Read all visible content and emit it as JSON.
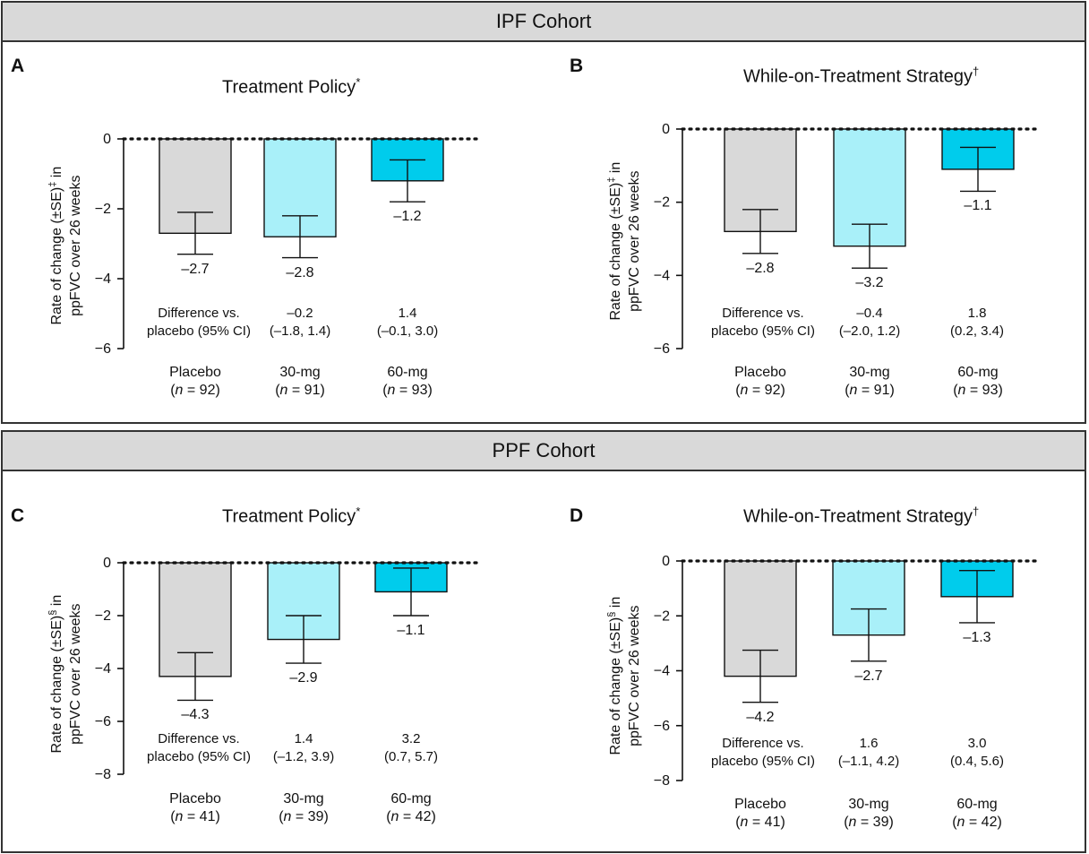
{
  "cohorts": [
    {
      "title": "IPF Cohort"
    },
    {
      "title": "PPF Cohort"
    }
  ],
  "colors": {
    "placebo": "#d9d9d9",
    "mg30": "#a9f0f9",
    "mg60": "#00ccec",
    "stroke": "#111111"
  },
  "chart_data": [
    {
      "panel": "A",
      "type": "bar",
      "title": "Treatment Policy",
      "title_mark": "*",
      "ylabel_line1": "Rate of change (±SE)",
      "ylabel_mark": "‡",
      "ylabel_line1_tail": " in",
      "ylabel_line2": "ppFVC over 26 weeks",
      "ylim": [
        -6,
        0
      ],
      "yticks": [
        0,
        -2,
        -4,
        -6
      ],
      "categories": [
        "Placebo",
        "30-mg",
        "60-mg"
      ],
      "n_labels": [
        "n = 92",
        "n = 91",
        "n = 93"
      ],
      "values": [
        -2.7,
        -2.8,
        -1.2
      ],
      "value_labels": [
        "–2.7",
        "–2.8",
        "–1.2"
      ],
      "error": [
        0.6,
        0.6,
        0.6
      ],
      "difference_label": [
        "Difference vs.",
        "placebo (95% CI)"
      ],
      "differences": [
        [
          "–0.2",
          "(–1.8, 1.4)"
        ],
        [
          "1.4",
          "(–0.1, 3.0)"
        ]
      ]
    },
    {
      "panel": "B",
      "type": "bar",
      "title": "While-on-Treatment Strategy",
      "title_mark": "†",
      "ylabel_line1": "Rate of change (±SE)",
      "ylabel_mark": "‡",
      "ylabel_line1_tail": " in",
      "ylabel_line2": "ppFVC over 26 weeks",
      "ylim": [
        -6,
        0
      ],
      "yticks": [
        0,
        -2,
        -4,
        -6
      ],
      "categories": [
        "Placebo",
        "30-mg",
        "60-mg"
      ],
      "n_labels": [
        "n = 92",
        "n = 91",
        "n = 93"
      ],
      "values": [
        -2.8,
        -3.2,
        -1.1
      ],
      "value_labels": [
        "–2.8",
        "–3.2",
        "–1.1"
      ],
      "error": [
        0.6,
        0.6,
        0.6
      ],
      "difference_label": [
        "Difference vs.",
        "placebo (95% CI)"
      ],
      "differences": [
        [
          "–0.4",
          "(–2.0, 1.2)"
        ],
        [
          "1.8",
          "(0.2, 3.4)"
        ]
      ]
    },
    {
      "panel": "C",
      "type": "bar",
      "title": "Treatment Policy",
      "title_mark": "*",
      "ylabel_line1": "Rate of change (±SE)",
      "ylabel_mark": "§",
      "ylabel_line1_tail": " in",
      "ylabel_line2": "ppFVC over 26 weeks",
      "ylim": [
        -8,
        0
      ],
      "yticks": [
        0,
        -2,
        -4,
        -6,
        -8
      ],
      "categories": [
        "Placebo",
        "30-mg",
        "60-mg"
      ],
      "n_labels": [
        "n = 41",
        "n = 39",
        "n = 42"
      ],
      "values": [
        -4.3,
        -2.9,
        -1.1
      ],
      "value_labels": [
        "–4.3",
        "–2.9",
        "–1.1"
      ],
      "error": [
        0.9,
        0.9,
        0.9
      ],
      "difference_label": [
        "Difference vs.",
        "placebo (95% CI)"
      ],
      "differences": [
        [
          "1.4",
          "(–1.2, 3.9)"
        ],
        [
          "3.2",
          "(0.7, 5.7)"
        ]
      ]
    },
    {
      "panel": "D",
      "type": "bar",
      "title": "While-on-Treatment Strategy",
      "title_mark": "†",
      "ylabel_line1": "Rate of change (±SE)",
      "ylabel_mark": "§",
      "ylabel_line1_tail": " in",
      "ylabel_line2": "ppFVC over 26 weeks",
      "ylim": [
        -8,
        0
      ],
      "yticks": [
        0,
        -2,
        -4,
        -6,
        -8
      ],
      "categories": [
        "Placebo",
        "30-mg",
        "60-mg"
      ],
      "n_labels": [
        "n = 41",
        "n = 39",
        "n = 42"
      ],
      "values": [
        -4.2,
        -2.7,
        -1.3
      ],
      "value_labels": [
        "–4.2",
        "–2.7",
        "–1.3"
      ],
      "error": [
        0.95,
        0.95,
        0.95
      ],
      "difference_label": [
        "Difference vs.",
        "placebo (95% CI)"
      ],
      "differences": [
        [
          "1.6",
          "(–1.1, 4.2)"
        ],
        [
          "3.0",
          "(0.4, 5.6)"
        ]
      ]
    }
  ]
}
